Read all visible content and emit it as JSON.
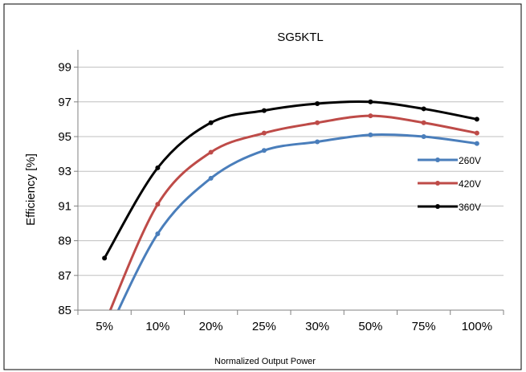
{
  "chart_data": {
    "type": "line",
    "title": "SG5KTL",
    "xlabel": "Normalized Output Power",
    "ylabel": "Efficiency [%]",
    "categories": [
      "5%",
      "10%",
      "20%",
      "25%",
      "30%",
      "50%",
      "75%",
      "100%"
    ],
    "ylim": [
      85,
      100
    ],
    "yticks": [
      "85",
      "87",
      "89",
      "91",
      "93",
      "95",
      "97",
      "99"
    ],
    "grid": true,
    "legend_position": "right",
    "series": [
      {
        "name": "260V",
        "color": "#4a7ebb",
        "values": [
          83.3,
          89.4,
          92.6,
          94.2,
          94.7,
          95.1,
          95.0,
          94.6
        ]
      },
      {
        "name": "420V",
        "color": "#be4b48",
        "values": [
          84.2,
          91.1,
          94.1,
          95.2,
          95.8,
          96.2,
          95.8,
          95.2
        ]
      },
      {
        "name": "360V",
        "color": "#000000",
        "values": [
          88.0,
          93.2,
          95.8,
          96.5,
          96.9,
          97.0,
          96.6,
          96.0
        ]
      }
    ]
  }
}
